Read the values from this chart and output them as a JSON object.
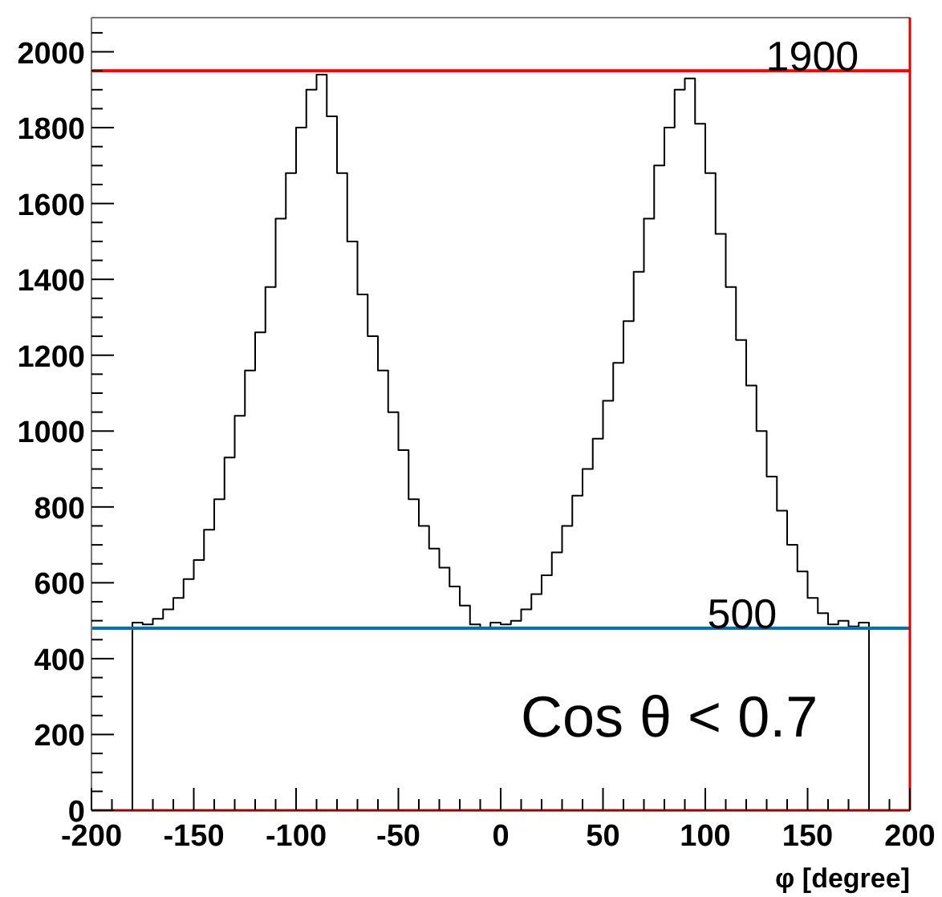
{
  "chart_data": {
    "type": "histogram",
    "xlabel": "φ [degree]",
    "bins": [
      -180,
      -175,
      -170,
      -165,
      -160,
      -155,
      -150,
      -145,
      -140,
      -135,
      -130,
      -125,
      -120,
      -115,
      -110,
      -105,
      -100,
      -95,
      -90,
      -85,
      -80,
      -75,
      -70,
      -65,
      -60,
      -55,
      -50,
      -45,
      -40,
      -35,
      -30,
      -25,
      -20,
      -15,
      -10,
      -5,
      0,
      5,
      10,
      15,
      20,
      25,
      30,
      35,
      40,
      45,
      50,
      55,
      60,
      65,
      70,
      75,
      80,
      85,
      90,
      95,
      100,
      105,
      110,
      115,
      120,
      125,
      130,
      135,
      140,
      145,
      150,
      155,
      160,
      165,
      170,
      175,
      180
    ],
    "values": [
      495,
      490,
      505,
      530,
      560,
      610,
      660,
      740,
      820,
      930,
      1040,
      1160,
      1260,
      1380,
      1560,
      1680,
      1800,
      1900,
      1940,
      1830,
      1680,
      1500,
      1360,
      1250,
      1160,
      1050,
      950,
      820,
      750,
      690,
      640,
      590,
      540,
      490,
      480,
      495,
      490,
      500,
      530,
      570,
      620,
      680,
      750,
      830,
      900,
      980,
      1080,
      1180,
      1290,
      1420,
      1560,
      1700,
      1800,
      1900,
      1930,
      1810,
      1680,
      1520,
      1380,
      1240,
      1120,
      1000,
      880,
      790,
      700,
      630,
      560,
      520,
      490,
      500,
      485,
      495
    ],
    "color": "#000000",
    "xlim": [
      -200,
      200
    ],
    "xticks": [
      -200,
      {
        "value": -190,
        "label": null
      },
      {
        "value": -180,
        "label": null
      },
      {
        "value": -170,
        "label": null
      },
      {
        "value": -160,
        "label": null
      },
      -150,
      {
        "value": -140,
        "label": null
      },
      {
        "value": -130,
        "label": null
      },
      {
        "value": -120,
        "label": null
      },
      {
        "value": -110,
        "label": null
      },
      -100,
      {
        "value": -90,
        "label": null
      },
      {
        "value": -80,
        "label": null
      },
      {
        "value": -70,
        "label": null
      },
      {
        "value": -60,
        "label": null
      },
      -50,
      {
        "value": -40,
        "label": null
      },
      {
        "value": -30,
        "label": null
      },
      {
        "value": -20,
        "label": null
      },
      {
        "value": -10,
        "label": null
      },
      0,
      {
        "value": 10,
        "label": null
      },
      {
        "value": 20,
        "label": null
      },
      {
        "value": 30,
        "label": null
      },
      {
        "value": 40,
        "label": null
      },
      50,
      {
        "value": 60,
        "label": null
      },
      {
        "value": 70,
        "label": null
      },
      {
        "value": 80,
        "label": null
      },
      {
        "value": 90,
        "label": null
      },
      100,
      {
        "value": 110,
        "label": null
      },
      {
        "value": 120,
        "label": null
      },
      {
        "value": 130,
        "label": null
      },
      {
        "value": 140,
        "label": null
      },
      150,
      {
        "value": 160,
        "label": null
      },
      {
        "value": 170,
        "label": null
      },
      {
        "value": 180,
        "label": null
      },
      {
        "value": 190,
        "label": null
      },
      200
    ],
    "ylim": [
      0,
      2090
    ],
    "yticks": [
      0,
      {
        "value": 50,
        "label": null
      },
      {
        "value": 100,
        "label": null
      },
      {
        "value": 150,
        "label": null
      },
      200,
      {
        "value": 250,
        "label": null
      },
      {
        "value": 300,
        "label": null
      },
      {
        "value": 350,
        "label": null
      },
      400,
      {
        "value": 450,
        "label": null
      },
      {
        "value": 500,
        "label": null
      },
      {
        "value": 550,
        "label": null
      },
      600,
      {
        "value": 650,
        "label": null
      },
      {
        "value": 700,
        "label": null
      },
      {
        "value": 750,
        "label": null
      },
      800,
      {
        "value": 850,
        "label": null
      },
      {
        "value": 900,
        "label": null
      },
      {
        "value": 950,
        "label": null
      },
      1000,
      {
        "value": 1050,
        "label": null
      },
      {
        "value": 1100,
        "label": null
      },
      {
        "value": 1150,
        "label": null
      },
      1200,
      {
        "value": 1250,
        "label": null
      },
      {
        "value": 1300,
        "label": null
      },
      {
        "value": 1350,
        "label": null
      },
      1400,
      {
        "value": 1450,
        "label": null
      },
      {
        "value": 1500,
        "label": null
      },
      {
        "value": 1550,
        "label": null
      },
      1600,
      {
        "value": 1650,
        "label": null
      },
      {
        "value": 1700,
        "label": null
      },
      {
        "value": 1750,
        "label": null
      },
      1800,
      {
        "value": 1850,
        "label": null
      },
      {
        "value": 1900,
        "label": null
      },
      {
        "value": 1950,
        "label": null
      },
      2000,
      {
        "value": 2050,
        "label": null
      }
    ],
    "ref_lines": [
      {
        "axis": "y",
        "value": 1950,
        "color": "#ff0000"
      },
      {
        "axis": "y",
        "value": 480,
        "color": "#0070c0"
      }
    ],
    "annotations": [
      {
        "text": "1900",
        "x": 175,
        "y": 1950
      },
      {
        "text": "500",
        "x": 135,
        "y": 480
      },
      "Cos θ < 0.7"
    ],
    "grid": false
  }
}
